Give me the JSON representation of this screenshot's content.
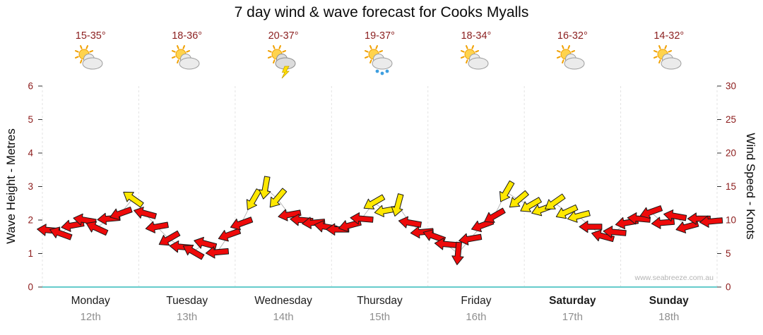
{
  "title": "7 day wind & wave forecast for Cooks Myalls",
  "watermark": "www.seabreeze.com.au",
  "axes": {
    "left_label": "Wave Height - Metres",
    "right_label": "Wind Speed - Knots",
    "left_ticks": [
      0,
      1,
      2,
      3,
      4,
      5,
      6
    ],
    "right_ticks": [
      0,
      5,
      10,
      15,
      20,
      25,
      30
    ]
  },
  "days": [
    {
      "name": "Monday",
      "date": "12th",
      "temp": "15-35°",
      "icon": "sun-cloud-icon",
      "bold": false
    },
    {
      "name": "Tuesday",
      "date": "13th",
      "temp": "18-36°",
      "icon": "sun-cloud-icon",
      "bold": false
    },
    {
      "name": "Wednesday",
      "date": "14th",
      "temp": "20-37°",
      "icon": "thunderstorm-icon",
      "bold": false
    },
    {
      "name": "Thursday",
      "date": "15th",
      "temp": "19-37°",
      "icon": "sun-rain-icon",
      "bold": false
    },
    {
      "name": "Friday",
      "date": "16th",
      "temp": "18-34°",
      "icon": "sun-cloud-icon",
      "bold": false
    },
    {
      "name": "Saturday",
      "date": "17th",
      "temp": "16-32°",
      "icon": "sun-cloud-icon",
      "bold": true
    },
    {
      "name": "Sunday",
      "date": "18th",
      "temp": "14-32°",
      "icon": "sun-cloud-icon",
      "bold": true
    }
  ],
  "colors": {
    "arrow_red": "#ee0a0a",
    "arrow_yellow": "#ffe800",
    "arrow_outline": "#1a1a1a",
    "axis_number": "#8b1a1a",
    "baseline": "#66cccc",
    "day_separator": "#e3e3e3",
    "connector": "#a8a8a8"
  },
  "chart_data": {
    "type": "line",
    "subtype": "wind-arrow-forecast",
    "categories": [
      "Monday 12th",
      "Tuesday 13th",
      "Wednesday 14th",
      "Thursday 15th",
      "Friday 16th",
      "Saturday 17th",
      "Sunday 18th"
    ],
    "samples_per_day": 8,
    "left_axis": {
      "label": "Wave Height - Metres",
      "range": [
        0,
        6
      ],
      "unit": "metres"
    },
    "right_axis": {
      "label": "Wind Speed - Knots",
      "range": [
        0,
        30
      ],
      "unit": "knots"
    },
    "wind_knots": [
      8.5,
      8.0,
      9.2,
      10.0,
      8.8,
      10.2,
      11.0,
      13.2,
      11.0,
      9.0,
      7.2,
      6.0,
      5.3,
      6.5,
      5.2,
      7.8,
      9.5,
      13.0,
      14.8,
      13.2,
      10.8,
      10.0,
      9.6,
      9.0,
      8.6,
      9.2,
      10.2,
      12.6,
      11.4,
      12.2,
      9.6,
      8.2,
      7.6,
      6.4,
      5.0,
      7.2,
      9.2,
      10.6,
      14.2,
      13.0,
      12.2,
      11.6,
      12.6,
      11.2,
      10.6,
      9.0,
      7.6,
      8.2,
      9.6,
      10.2,
      11.2,
      9.6,
      10.6,
      9.0,
      10.2,
      9.8
    ],
    "wind_dir_deg": [
      185,
      200,
      170,
      190,
      205,
      175,
      160,
      215,
      195,
      170,
      150,
      185,
      210,
      195,
      175,
      160,
      160,
      120,
      100,
      130,
      170,
      185,
      175,
      190,
      180,
      165,
      185,
      150,
      170,
      105,
      190,
      175,
      200,
      185,
      95,
      170,
      160,
      150,
      120,
      140,
      150,
      160,
      145,
      155,
      165,
      180,
      195,
      185,
      170,
      185,
      160,
      175,
      190,
      165,
      180,
      175
    ],
    "arrow_colors": [
      "red",
      "red",
      "red",
      "red",
      "red",
      "red",
      "red",
      "yellow",
      "red",
      "red",
      "red",
      "red",
      "red",
      "red",
      "red",
      "red",
      "red",
      "yellow",
      "yellow",
      "yellow",
      "red",
      "red",
      "red",
      "red",
      "red",
      "red",
      "red",
      "yellow",
      "yellow",
      "yellow",
      "red",
      "red",
      "red",
      "red",
      "red",
      "red",
      "red",
      "red",
      "yellow",
      "yellow",
      "yellow",
      "yellow",
      "yellow",
      "yellow",
      "yellow",
      "red",
      "red",
      "red",
      "red",
      "red",
      "red",
      "red",
      "red",
      "red",
      "red",
      "red"
    ]
  }
}
